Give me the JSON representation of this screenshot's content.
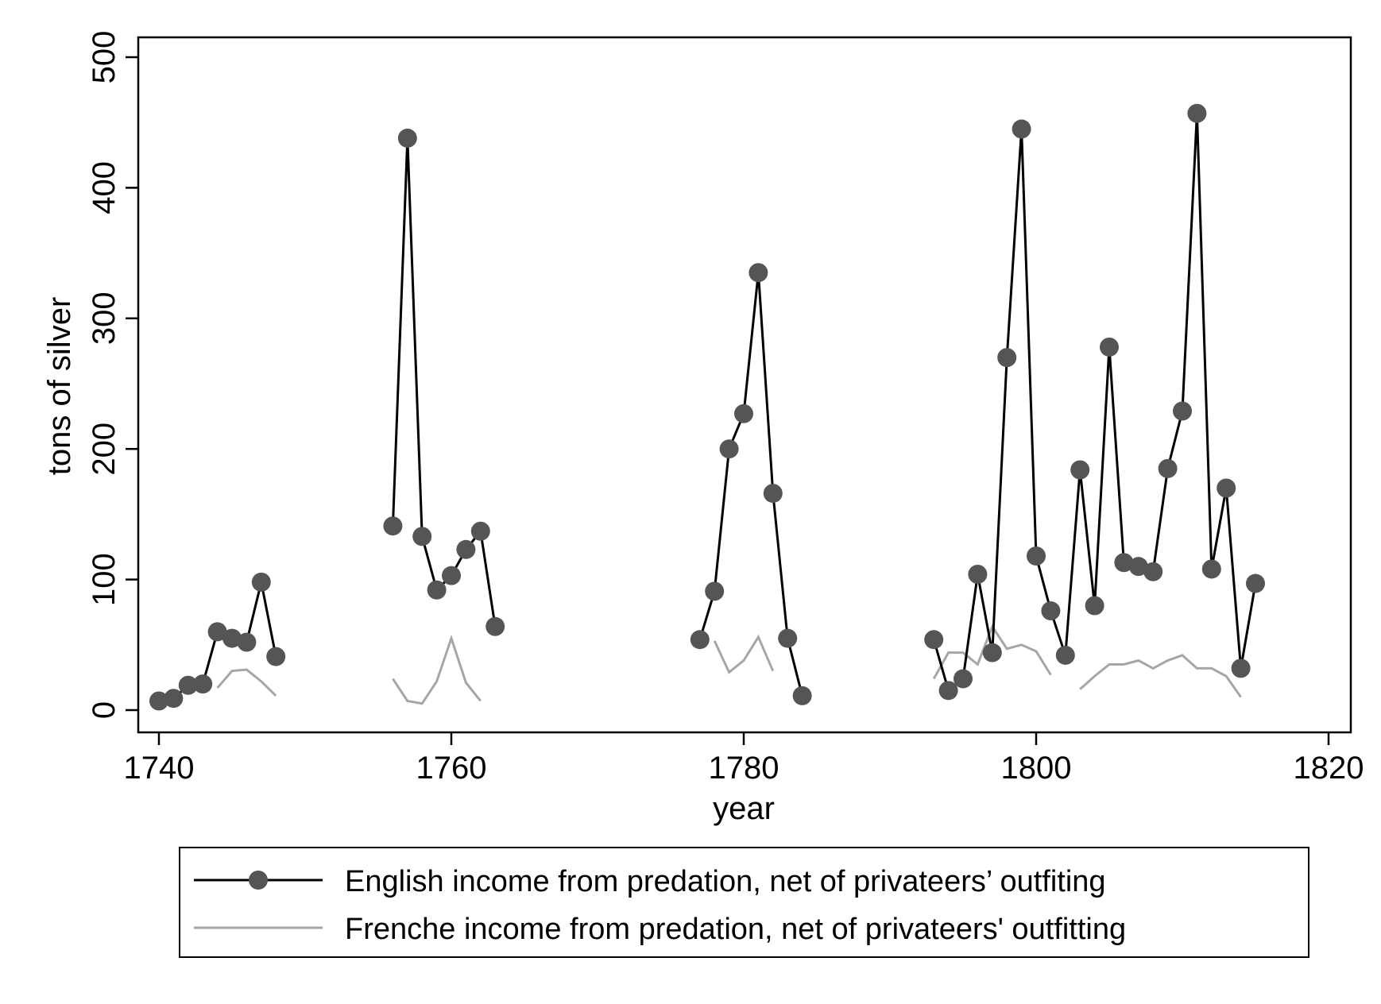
{
  "chart_data": {
    "type": "line",
    "xlabel": "year",
    "ylabel": "tons of silver",
    "xlim": [
      1740,
      1820
    ],
    "ylim": [
      0,
      500
    ],
    "x_ticks": [
      1740,
      1760,
      1780,
      1800,
      1820
    ],
    "y_ticks": [
      0,
      100,
      200,
      300,
      400,
      500
    ],
    "grid": false,
    "legend_position": "bottom",
    "colors": {
      "english": "#000000",
      "english_marker": "#555555",
      "french": "#a6a6a6"
    },
    "series": [
      {
        "name": "English income from predation, net of privateers’ outfiting",
        "style": "line-with-markers",
        "segments": [
          [
            [
              1740,
              7
            ],
            [
              1741,
              9
            ],
            [
              1742,
              19
            ],
            [
              1743,
              20
            ],
            [
              1744,
              60
            ],
            [
              1745,
              55
            ],
            [
              1746,
              52
            ],
            [
              1747,
              98
            ],
            [
              1748,
              41
            ]
          ],
          [
            [
              1756,
              141
            ],
            [
              1757,
              438
            ],
            [
              1758,
              133
            ],
            [
              1759,
              92
            ],
            [
              1760,
              103
            ],
            [
              1761,
              123
            ],
            [
              1762,
              137
            ],
            [
              1763,
              64
            ]
          ],
          [
            [
              1777,
              54
            ],
            [
              1778,
              91
            ],
            [
              1779,
              200
            ],
            [
              1780,
              227
            ],
            [
              1781,
              335
            ],
            [
              1782,
              166
            ],
            [
              1783,
              55
            ],
            [
              1784,
              11
            ]
          ],
          [
            [
              1793,
              54
            ],
            [
              1794,
              15
            ],
            [
              1795,
              24
            ],
            [
              1796,
              104
            ],
            [
              1797,
              44
            ],
            [
              1798,
              270
            ],
            [
              1799,
              445
            ],
            [
              1800,
              118
            ],
            [
              1801,
              76
            ],
            [
              1802,
              42
            ],
            [
              1803,
              184
            ],
            [
              1804,
              80
            ],
            [
              1805,
              278
            ],
            [
              1806,
              113
            ],
            [
              1807,
              110
            ],
            [
              1808,
              106
            ],
            [
              1809,
              185
            ],
            [
              1810,
              229
            ],
            [
              1811,
              457
            ],
            [
              1812,
              108
            ],
            [
              1813,
              170
            ],
            [
              1814,
              32
            ],
            [
              1815,
              97
            ]
          ]
        ]
      },
      {
        "name": "Frenche income from predation, net of privateers' outfitting",
        "style": "line",
        "segments": [
          [
            [
              1744,
              17
            ],
            [
              1745,
              30
            ],
            [
              1746,
              31
            ],
            [
              1747,
              22
            ],
            [
              1748,
              11
            ]
          ],
          [
            [
              1756,
              24
            ],
            [
              1757,
              7
            ],
            [
              1758,
              5
            ],
            [
              1759,
              22
            ],
            [
              1760,
              55
            ],
            [
              1761,
              21
            ],
            [
              1762,
              7
            ]
          ],
          [
            [
              1778,
              53
            ],
            [
              1779,
              29
            ],
            [
              1780,
              38
            ],
            [
              1781,
              56
            ],
            [
              1782,
              30
            ]
          ],
          [
            [
              1793,
              24
            ],
            [
              1794,
              44
            ],
            [
              1795,
              44
            ],
            [
              1796,
              35
            ],
            [
              1797,
              64
            ],
            [
              1798,
              47
            ],
            [
              1799,
              50
            ],
            [
              1800,
              45
            ],
            [
              1801,
              27
            ]
          ],
          [
            [
              1803,
              16
            ],
            [
              1804,
              26
            ],
            [
              1805,
              35
            ],
            [
              1806,
              35
            ],
            [
              1807,
              38
            ],
            [
              1808,
              32
            ],
            [
              1809,
              38
            ],
            [
              1810,
              42
            ],
            [
              1811,
              32
            ],
            [
              1812,
              32
            ],
            [
              1813,
              26
            ],
            [
              1814,
              10
            ]
          ]
        ]
      }
    ]
  }
}
